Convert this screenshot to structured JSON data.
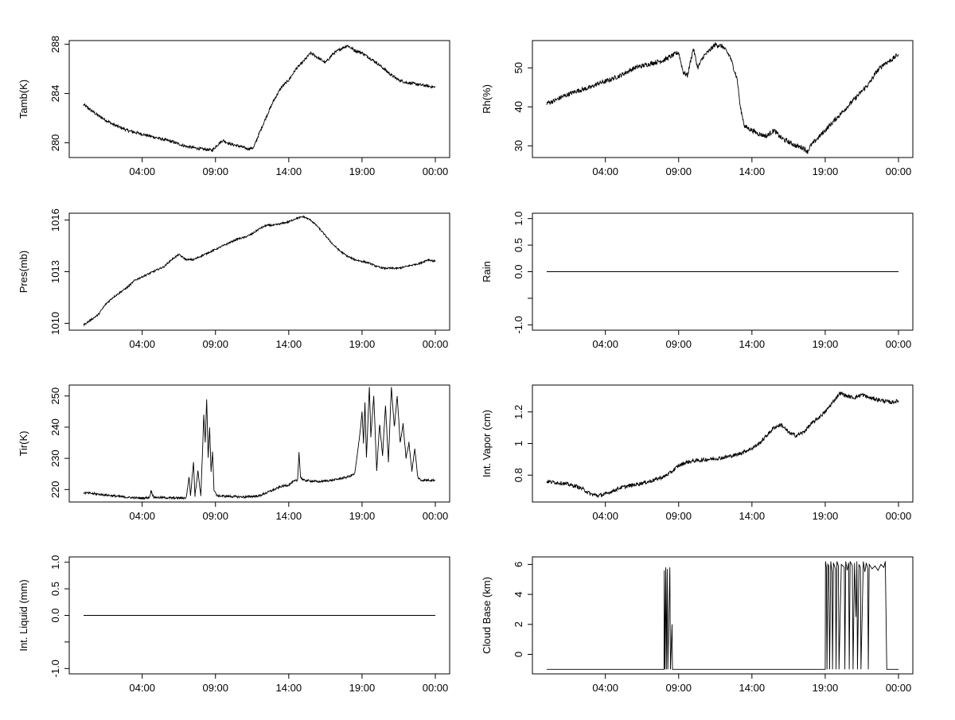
{
  "chart_data": [
    {
      "type": "line",
      "ylabel": "Tamb(K)",
      "xticks": [
        "04:00",
        "09:00",
        "14:00",
        "19:00",
        "00:00"
      ],
      "xlim": [
        0,
        24
      ],
      "ylim": [
        278.8,
        288.3
      ],
      "yticks": [
        280,
        284,
        288
      ],
      "noise": 0.12,
      "points": [
        [
          0,
          283.1
        ],
        [
          1,
          282.2
        ],
        [
          2,
          281.5
        ],
        [
          3,
          281.0
        ],
        [
          4,
          280.7
        ],
        [
          5,
          280.4
        ],
        [
          6,
          280.1
        ],
        [
          7,
          279.7
        ],
        [
          8,
          279.5
        ],
        [
          8.8,
          279.4
        ],
        [
          9.1,
          279.8
        ],
        [
          9.5,
          280.2
        ],
        [
          10,
          279.9
        ],
        [
          10.7,
          279.7
        ],
        [
          11.2,
          279.5
        ],
        [
          11.6,
          279.6
        ],
        [
          12,
          280.8
        ],
        [
          12.5,
          282.2
        ],
        [
          13,
          283.5
        ],
        [
          13.5,
          284.5
        ],
        [
          14,
          285.1
        ],
        [
          14.5,
          286.0
        ],
        [
          15,
          286.6
        ],
        [
          15.5,
          287.3
        ],
        [
          16,
          286.9
        ],
        [
          16.5,
          286.5
        ],
        [
          17,
          287.2
        ],
        [
          17.5,
          287.6
        ],
        [
          18,
          287.9
        ],
        [
          18.5,
          287.5
        ],
        [
          19,
          287.3
        ],
        [
          19.5,
          286.9
        ],
        [
          20,
          286.5
        ],
        [
          20.5,
          286.0
        ],
        [
          21,
          285.5
        ],
        [
          21.5,
          285.1
        ],
        [
          22,
          284.9
        ],
        [
          22.5,
          284.8
        ],
        [
          23,
          284.7
        ],
        [
          23.5,
          284.6
        ],
        [
          24,
          284.5
        ]
      ]
    },
    {
      "type": "line",
      "ylabel": "Rh(%)",
      "xticks": [
        "04:00",
        "09:00",
        "14:00",
        "19:00",
        "00:00"
      ],
      "xlim": [
        0,
        24
      ],
      "ylim": [
        27,
        57
      ],
      "yticks": [
        30,
        40,
        50
      ],
      "noise": 0.6,
      "points": [
        [
          0,
          41
        ],
        [
          0.5,
          41.5
        ],
        [
          1,
          42.5
        ],
        [
          2,
          44
        ],
        [
          3,
          45
        ],
        [
          3.5,
          46
        ],
        [
          4,
          46.5
        ],
        [
          5,
          48
        ],
        [
          6,
          50
        ],
        [
          7,
          51
        ],
        [
          8,
          52
        ],
        [
          8.5,
          53
        ],
        [
          9,
          54
        ],
        [
          9.3,
          49
        ],
        [
          9.6,
          48
        ],
        [
          10,
          55
        ],
        [
          10.3,
          50
        ],
        [
          10.7,
          53
        ],
        [
          11,
          54
        ],
        [
          11.5,
          56
        ],
        [
          12,
          55.5
        ],
        [
          12.5,
          53
        ],
        [
          13,
          47
        ],
        [
          13.2,
          40
        ],
        [
          13.5,
          35
        ],
        [
          14,
          34
        ],
        [
          14.5,
          33
        ],
        [
          15,
          32.5
        ],
        [
          15.5,
          34
        ],
        [
          16,
          32
        ],
        [
          16.5,
          31
        ],
        [
          17,
          30
        ],
        [
          17.5,
          29.5
        ],
        [
          17.8,
          28.5
        ],
        [
          18,
          30
        ],
        [
          18.5,
          32
        ],
        [
          19,
          34
        ],
        [
          19.5,
          36
        ],
        [
          20,
          38
        ],
        [
          20.5,
          40
        ],
        [
          21,
          42
        ],
        [
          21.5,
          44
        ],
        [
          22,
          46
        ],
        [
          22.5,
          49
        ],
        [
          23,
          51
        ],
        [
          23.5,
          52
        ],
        [
          24,
          53.5
        ]
      ]
    },
    {
      "type": "line",
      "ylabel": "Pres(mb)",
      "xticks": [
        "04:00",
        "09:00",
        "14:00",
        "19:00",
        "00:00"
      ],
      "xlim": [
        0,
        24
      ],
      "ylim": [
        1009.6,
        1016.4
      ],
      "yticks": [
        1010,
        1013,
        1016
      ],
      "noise": 0.05,
      "points": [
        [
          0,
          1009.9
        ],
        [
          0.5,
          1010.2
        ],
        [
          1,
          1010.5
        ],
        [
          1.5,
          1011.1
        ],
        [
          2,
          1011.5
        ],
        [
          2.5,
          1011.8
        ],
        [
          3,
          1012.1
        ],
        [
          3.5,
          1012.5
        ],
        [
          4,
          1012.7
        ],
        [
          4.5,
          1012.9
        ],
        [
          5,
          1013.1
        ],
        [
          5.5,
          1013.3
        ],
        [
          6,
          1013.7
        ],
        [
          6.5,
          1014.0
        ],
        [
          7,
          1013.7
        ],
        [
          7.5,
          1013.7
        ],
        [
          8,
          1013.9
        ],
        [
          8.5,
          1014.1
        ],
        [
          9,
          1014.3
        ],
        [
          9.5,
          1014.5
        ],
        [
          10,
          1014.7
        ],
        [
          10.5,
          1014.9
        ],
        [
          11,
          1015.0
        ],
        [
          11.5,
          1015.2
        ],
        [
          12,
          1015.5
        ],
        [
          12.5,
          1015.7
        ],
        [
          13,
          1015.7
        ],
        [
          13.5,
          1015.8
        ],
        [
          14,
          1015.9
        ],
        [
          14.5,
          1016.1
        ],
        [
          15,
          1016.2
        ],
        [
          15.5,
          1016.0
        ],
        [
          16,
          1015.6
        ],
        [
          16.5,
          1015.1
        ],
        [
          17,
          1014.6
        ],
        [
          17.5,
          1014.2
        ],
        [
          18,
          1013.9
        ],
        [
          18.5,
          1013.7
        ],
        [
          19,
          1013.6
        ],
        [
          19.5,
          1013.5
        ],
        [
          20,
          1013.3
        ],
        [
          20.5,
          1013.2
        ],
        [
          21,
          1013.2
        ],
        [
          21.5,
          1013.2
        ],
        [
          22,
          1013.3
        ],
        [
          22.5,
          1013.4
        ],
        [
          23,
          1013.5
        ],
        [
          23.5,
          1013.7
        ],
        [
          24,
          1013.6
        ]
      ]
    },
    {
      "type": "line",
      "ylabel": "Rain",
      "xticks": [
        "04:00",
        "09:00",
        "14:00",
        "19:00",
        "00:00"
      ],
      "xlim": [
        0,
        24
      ],
      "ylim": [
        -1.1,
        1.1
      ],
      "yticks": [
        -1.0,
        -0.5,
        0.0,
        0.5,
        1.0
      ],
      "yticklabels": [
        "-1.0",
        "",
        "0.0",
        "0.5",
        "1.0"
      ],
      "noise": 0,
      "points": [
        [
          0,
          0
        ],
        [
          24,
          0
        ]
      ]
    },
    {
      "type": "line",
      "ylabel": "Tir(K)",
      "xticks": [
        "04:00",
        "09:00",
        "14:00",
        "19:00",
        "00:00"
      ],
      "xlim": [
        0,
        24
      ],
      "ylim": [
        216,
        253.5
      ],
      "yticks": [
        220,
        230,
        240,
        250
      ],
      "noise": 0.35,
      "points": [
        [
          0,
          219
        ],
        [
          1,
          218.5
        ],
        [
          2,
          218
        ],
        [
          3,
          217.5
        ],
        [
          4,
          217.2
        ],
        [
          4.5,
          217.5
        ],
        [
          4.6,
          219.5
        ],
        [
          4.8,
          217.5
        ],
        [
          6,
          217.3
        ],
        [
          7,
          217.3
        ],
        [
          7.2,
          224
        ],
        [
          7.3,
          218
        ],
        [
          7.5,
          229
        ],
        [
          7.6,
          218
        ],
        [
          7.8,
          226
        ],
        [
          8,
          218
        ],
        [
          8.1,
          230
        ],
        [
          8.2,
          244
        ],
        [
          8.3,
          235
        ],
        [
          8.4,
          249
        ],
        [
          8.5,
          230
        ],
        [
          8.6,
          240
        ],
        [
          8.7,
          226
        ],
        [
          8.8,
          232
        ],
        [
          8.9,
          220
        ],
        [
          9.1,
          218
        ],
        [
          10,
          217.8
        ],
        [
          11,
          217.6
        ],
        [
          12,
          218
        ],
        [
          12.5,
          219
        ],
        [
          13,
          220
        ],
        [
          13.5,
          221
        ],
        [
          14,
          221.5
        ],
        [
          14.3,
          222.5
        ],
        [
          14.6,
          223
        ],
        [
          14.7,
          232
        ],
        [
          14.8,
          224
        ],
        [
          15,
          223
        ],
        [
          16,
          222.5
        ],
        [
          17,
          223
        ],
        [
          18,
          224
        ],
        [
          18.5,
          225
        ],
        [
          18.7,
          232
        ],
        [
          18.9,
          240
        ],
        [
          19,
          245
        ],
        [
          19.1,
          235
        ],
        [
          19.2,
          248
        ],
        [
          19.3,
          230
        ],
        [
          19.5,
          253
        ],
        [
          19.6,
          237
        ],
        [
          19.8,
          250
        ],
        [
          20,
          226
        ],
        [
          20.2,
          241
        ],
        [
          20.4,
          231
        ],
        [
          20.6,
          247
        ],
        [
          20.8,
          229
        ],
        [
          21,
          253
        ],
        [
          21.2,
          240
        ],
        [
          21.4,
          250
        ],
        [
          21.6,
          235
        ],
        [
          21.8,
          241
        ],
        [
          22,
          230
        ],
        [
          22.2,
          235
        ],
        [
          22.4,
          226
        ],
        [
          22.6,
          233
        ],
        [
          22.8,
          224
        ],
        [
          23,
          223
        ],
        [
          23.5,
          223
        ],
        [
          24,
          223
        ]
      ]
    },
    {
      "type": "line",
      "ylabel": "Int. Vapor (cm)",
      "xticks": [
        "04:00",
        "09:00",
        "14:00",
        "19:00",
        "00:00"
      ],
      "xlim": [
        0,
        24
      ],
      "ylim": [
        0.63,
        1.37
      ],
      "yticks": [
        0.8,
        1.0,
        1.2
      ],
      "noise": 0.012,
      "points": [
        [
          0,
          0.76
        ],
        [
          1,
          0.75
        ],
        [
          2,
          0.73
        ],
        [
          2.5,
          0.71
        ],
        [
          3,
          0.68
        ],
        [
          3.5,
          0.67
        ],
        [
          4,
          0.68
        ],
        [
          5,
          0.72
        ],
        [
          6,
          0.74
        ],
        [
          7,
          0.76
        ],
        [
          8,
          0.79
        ],
        [
          8.5,
          0.82
        ],
        [
          9,
          0.86
        ],
        [
          9.5,
          0.88
        ],
        [
          10,
          0.89
        ],
        [
          11,
          0.9
        ],
        [
          12,
          0.91
        ],
        [
          13,
          0.93
        ],
        [
          13.5,
          0.95
        ],
        [
          14,
          0.97
        ],
        [
          14.5,
          1.0
        ],
        [
          15,
          1.05
        ],
        [
          15.5,
          1.1
        ],
        [
          16,
          1.12
        ],
        [
          16.5,
          1.07
        ],
        [
          17,
          1.05
        ],
        [
          17.5,
          1.07
        ],
        [
          18,
          1.12
        ],
        [
          18.5,
          1.16
        ],
        [
          19,
          1.2
        ],
        [
          19.5,
          1.26
        ],
        [
          20,
          1.32
        ],
        [
          20.5,
          1.3
        ],
        [
          21,
          1.29
        ],
        [
          21.5,
          1.31
        ],
        [
          22,
          1.29
        ],
        [
          22.5,
          1.28
        ],
        [
          23,
          1.27
        ],
        [
          23.5,
          1.26
        ],
        [
          24,
          1.27
        ]
      ]
    },
    {
      "type": "line",
      "ylabel": "Int. Liquid (mm)",
      "xticks": [
        "04:00",
        "09:00",
        "14:00",
        "19:00",
        "00:00"
      ],
      "xlim": [
        0,
        24
      ],
      "ylim": [
        -1.1,
        1.1
      ],
      "yticks": [
        -1.0,
        -0.5,
        0.0,
        0.5,
        1.0
      ],
      "yticklabels": [
        "-1.0",
        "",
        "0.0",
        "0.5",
        "1.0"
      ],
      "noise": 0,
      "points": [
        [
          0,
          0
        ],
        [
          24,
          0
        ]
      ]
    },
    {
      "type": "line",
      "ylabel": "Cloud Base (km)",
      "xticks": [
        "04:00",
        "09:00",
        "14:00",
        "19:00",
        "00:00"
      ],
      "xlim": [
        0,
        24
      ],
      "ylim": [
        -1.3,
        6.5
      ],
      "yticks": [
        0,
        2,
        4,
        6
      ],
      "noise": 0,
      "points": [
        [
          0,
          -1
        ],
        [
          8.0,
          -1
        ],
        [
          8.02,
          5.6
        ],
        [
          8.06,
          -1
        ],
        [
          8.12,
          5.8
        ],
        [
          8.16,
          -1
        ],
        [
          8.22,
          5.7
        ],
        [
          8.26,
          -1
        ],
        [
          8.4,
          5.8
        ],
        [
          8.44,
          -1
        ],
        [
          8.55,
          2.0
        ],
        [
          8.58,
          -1
        ],
        [
          19.0,
          -1
        ],
        [
          19.02,
          6.2
        ],
        [
          19.08,
          5.8
        ],
        [
          19.12,
          -1
        ],
        [
          19.18,
          6.0
        ],
        [
          19.24,
          5.9
        ],
        [
          19.3,
          -1
        ],
        [
          19.38,
          6.2
        ],
        [
          19.46,
          5.5
        ],
        [
          19.5,
          -1
        ],
        [
          19.56,
          6.1
        ],
        [
          19.7,
          5.7
        ],
        [
          19.74,
          -1
        ],
        [
          19.8,
          6.2
        ],
        [
          19.9,
          5.9
        ],
        [
          19.94,
          -1
        ],
        [
          20.1,
          6.0
        ],
        [
          20.3,
          5.8
        ],
        [
          20.34,
          -1
        ],
        [
          20.4,
          6.2
        ],
        [
          20.5,
          5.6
        ],
        [
          20.6,
          6.1
        ],
        [
          20.64,
          -1
        ],
        [
          20.7,
          6.2
        ],
        [
          20.85,
          5.9
        ],
        [
          20.9,
          -1
        ],
        [
          21.0,
          6.1
        ],
        [
          21.1,
          2.5
        ],
        [
          21.16,
          6.2
        ],
        [
          21.2,
          -1
        ],
        [
          21.3,
          6.0
        ],
        [
          21.4,
          5.8
        ],
        [
          21.44,
          -1
        ],
        [
          21.6,
          6.2
        ],
        [
          21.7,
          5.5
        ],
        [
          21.8,
          6.1
        ],
        [
          21.9,
          5.7
        ],
        [
          21.94,
          -1
        ],
        [
          22.0,
          6.0
        ],
        [
          22.2,
          5.7
        ],
        [
          22.4,
          5.9
        ],
        [
          22.6,
          5.6
        ],
        [
          22.8,
          6.0
        ],
        [
          23.0,
          5.8
        ],
        [
          23.1,
          6.2
        ],
        [
          23.2,
          -1
        ],
        [
          24,
          -1
        ]
      ]
    }
  ]
}
